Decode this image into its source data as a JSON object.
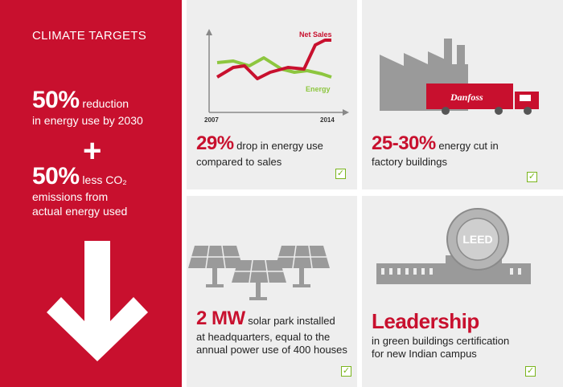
{
  "left": {
    "title": "CLIMATE TARGETS",
    "stat1_big": "50%",
    "stat1_small": " reduction",
    "stat1_line2": "in energy use by 2030",
    "plus": "+",
    "stat2_big": "50%",
    "stat2_small": " less CO₂",
    "stat2_line2": "emissions from",
    "stat2_line3": "actual energy used"
  },
  "card1": {
    "big": "29%",
    "text": " drop in energy use",
    "line2": "compared to sales",
    "chart": {
      "x_start": "2007",
      "x_end": "2014",
      "series_net_sales": "Net Sales",
      "series_energy": "Energy"
    }
  },
  "card2": {
    "big": "25-30%",
    "text": " energy cut in",
    "line2": "factory buildings",
    "truck_logo": "Danfoss"
  },
  "card3": {
    "big": "2 MW",
    "text": " solar park installed",
    "line2": "at headquarters, equal to the",
    "line3": "annual power use of 400 houses"
  },
  "card4": {
    "big": "Leadership",
    "line2": "in green buildings certification",
    "line3": "for new Indian campus",
    "seal": "LEED"
  },
  "colors": {
    "brand_red": "#c8102e",
    "energy_green": "#8dc63f",
    "icon_gray": "#9a9a9a",
    "check_green": "#7ab51d"
  },
  "icons": [
    "checkmark-icon",
    "down-arrow-icon",
    "factory-icon",
    "truck-icon",
    "solar-panel-icon",
    "building-icon",
    "leed-seal-icon"
  ]
}
